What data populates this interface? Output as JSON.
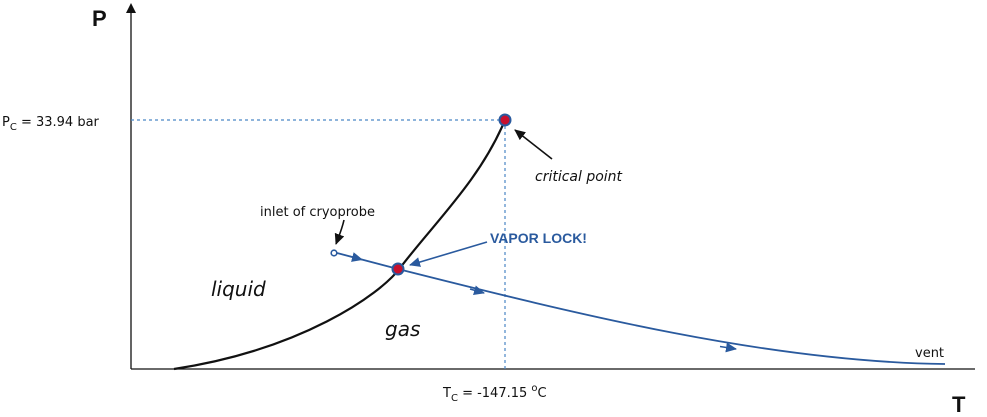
{
  "axes": {
    "y_letter": "P",
    "x_letter": "T"
  },
  "pc_label": {
    "pre": "P",
    "sub": "C",
    "post": " = 33.94 bar"
  },
  "tc_label": {
    "pre": "T",
    "sub": "C",
    "mid": " = -147.15 ",
    "sup": "o",
    "post": "C"
  },
  "labels": {
    "critical_point": "critical point",
    "inlet": "inlet of cryoprobe",
    "vapor_lock": "VAPOR LOCK!",
    "liquid": "liquid",
    "gas": "gas",
    "vent": "vent"
  },
  "colors": {
    "curve": "#111111",
    "flow": "#2a5a9e",
    "point_fill": "#c8102e",
    "guide": "#4a86c5"
  }
}
